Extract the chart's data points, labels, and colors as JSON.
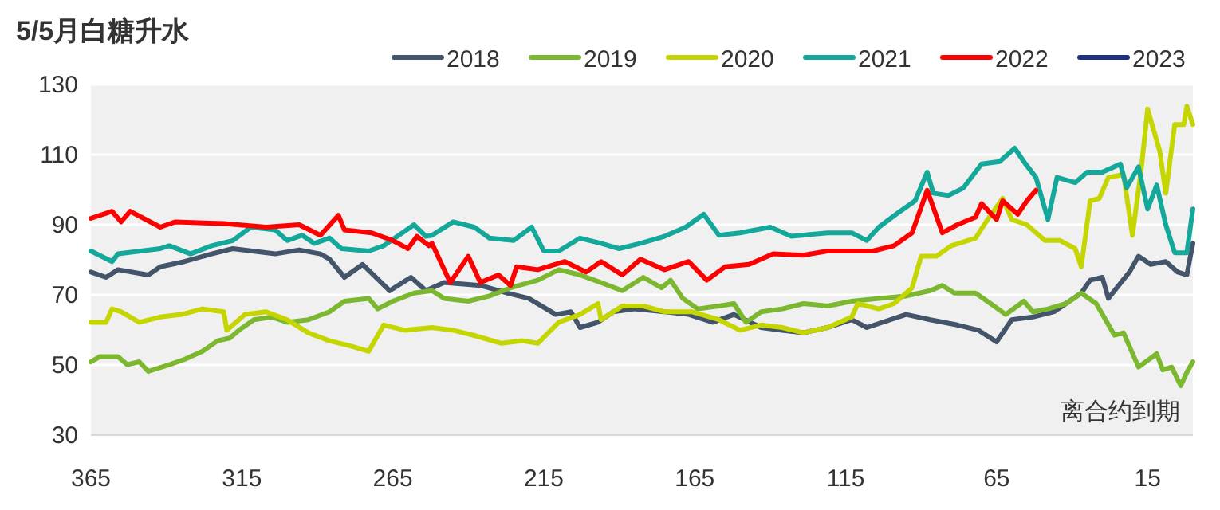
{
  "chart_data": {
    "type": "line",
    "title": "5/5月白糖升水",
    "annotations": [
      "离合约到期"
    ],
    "xlim": [
      365,
      0
    ],
    "xticks": [
      365,
      315,
      265,
      215,
      165,
      115,
      65,
      15
    ],
    "ylim": [
      30,
      130
    ],
    "yticks": [
      30,
      50,
      70,
      90,
      110,
      130
    ],
    "grid": "y",
    "legend": "top",
    "line_style": "solid",
    "marker": "none",
    "series": [
      {
        "name": "2018",
        "color": "#44546a",
        "x": [
          365,
          360,
          356,
          346,
          342,
          334,
          325,
          318,
          304,
          296,
          289,
          286,
          281,
          275,
          266,
          259,
          254,
          248,
          236,
          227,
          220,
          211,
          206,
          203,
          197,
          192,
          185,
          175,
          167,
          159,
          152,
          143,
          136,
          129,
          121,
          113,
          108,
          95,
          87,
          78,
          71,
          65,
          60,
          53,
          46,
          37,
          34,
          30,
          28,
          21,
          18,
          14,
          9,
          5,
          2,
          0
        ],
        "values": [
          76.5,
          75,
          77.2,
          75.7,
          78,
          79.5,
          81.7,
          83.2,
          81.7,
          82.8,
          81.7,
          80.2,
          75,
          78.7,
          71.2,
          75,
          71.2,
          73.5,
          72.7,
          70.5,
          69,
          64.4,
          65.2,
          60.7,
          62.2,
          65.2,
          66,
          65.2,
          64.4,
          62.2,
          64.4,
          60.7,
          59.9,
          59.2,
          60.7,
          62.9,
          60.7,
          64.4,
          62.9,
          61.4,
          59.9,
          56.6,
          62.9,
          63.7,
          65.2,
          70.5,
          74.2,
          75,
          69,
          76.5,
          81,
          78.7,
          79.5,
          76.5,
          75.7,
          84.7
        ]
      },
      {
        "name": "2019",
        "color": "#7cb82f",
        "x": [
          365,
          362,
          356,
          353,
          349,
          346,
          339,
          334,
          328,
          323,
          319,
          316,
          311,
          305,
          300,
          293,
          286,
          281,
          273,
          270,
          265,
          258,
          252,
          248,
          240,
          233,
          226,
          217,
          210,
          203,
          196,
          189,
          182,
          176,
          173,
          169,
          164,
          157,
          152,
          148,
          143,
          136,
          129,
          121,
          113,
          104,
          95,
          87,
          83,
          79,
          72,
          67,
          62,
          56,
          53,
          48,
          42,
          37,
          32,
          26,
          23,
          18,
          12,
          10,
          7,
          4,
          2,
          0
        ],
        "values": [
          50.9,
          52.4,
          52.4,
          50.1,
          50.9,
          48.2,
          50.1,
          51.6,
          53.9,
          56.9,
          57.7,
          59.9,
          62.9,
          63.7,
          62.2,
          62.9,
          65.2,
          68.2,
          69,
          66,
          68.2,
          70.5,
          71.2,
          69,
          68.2,
          69.7,
          72,
          74.2,
          77.2,
          75.7,
          73.5,
          71.2,
          75,
          72,
          74.2,
          69,
          66,
          66.8,
          67.5,
          62.2,
          65.2,
          66,
          67.5,
          66.8,
          68.2,
          69,
          69.7,
          71.2,
          72.7,
          70.5,
          70.5,
          67.5,
          64.4,
          68.2,
          65.2,
          66,
          67.5,
          70.5,
          67.5,
          58.5,
          59.2,
          49.4,
          53.2,
          48.6,
          49.4,
          44.1,
          47.9,
          50.9
        ]
      },
      {
        "name": "2020",
        "color": "#c5d500",
        "x": [
          365,
          360,
          358,
          355,
          349,
          342,
          335,
          328,
          321,
          320,
          314,
          307,
          300,
          293,
          286,
          279,
          273,
          268,
          261,
          252,
          245,
          238,
          229,
          222,
          217,
          210,
          203,
          197,
          196,
          189,
          182,
          175,
          166,
          157,
          150,
          143,
          136,
          129,
          121,
          113,
          111,
          104,
          99,
          93,
          90,
          85,
          80,
          72,
          68,
          63,
          60,
          55,
          49,
          44,
          39,
          37,
          34,
          31,
          28,
          23,
          20,
          17,
          15,
          11,
          9,
          6,
          3,
          2,
          0
        ],
        "values": [
          62.2,
          62.2,
          66,
          65.2,
          62.2,
          63.7,
          64.4,
          66,
          65.2,
          59.9,
          64.4,
          65.2,
          62.9,
          59.2,
          56.9,
          55.4,
          53.9,
          61.4,
          59.9,
          60.7,
          59.9,
          58.4,
          56.2,
          56.9,
          56.2,
          62.2,
          64.4,
          67.5,
          62.9,
          66.8,
          66.8,
          65.2,
          65.2,
          62.9,
          59.9,
          61.4,
          60.7,
          59.2,
          60.7,
          63.7,
          67.5,
          66,
          67.5,
          72,
          81,
          81,
          84,
          86.2,
          91.5,
          97.5,
          91.5,
          90,
          85.5,
          85.5,
          83.2,
          78,
          96.8,
          97.5,
          103.5,
          104.3,
          87,
          106.5,
          123,
          111,
          99,
          118.6,
          118.6,
          123.8,
          118.6
        ]
      },
      {
        "name": "2021",
        "color": "#14a89b",
        "x": [
          365,
          358,
          356,
          342,
          339,
          332,
          325,
          318,
          312,
          304,
          300,
          295,
          291,
          286,
          282,
          273,
          268,
          263,
          258,
          254,
          252,
          245,
          238,
          233,
          225,
          219,
          215,
          210,
          203,
          196,
          190,
          183,
          175,
          168,
          162,
          157,
          150,
          140,
          133,
          121,
          113,
          108,
          104,
          97,
          92,
          88,
          86,
          81,
          76,
          70,
          64,
          59,
          56,
          52,
          48,
          45,
          39,
          35,
          30,
          24,
          22,
          18,
          15,
          12,
          9,
          6,
          2,
          0
        ],
        "values": [
          82.5,
          79.5,
          81.7,
          83.2,
          84,
          81.7,
          84,
          85.5,
          89.3,
          88.5,
          85.5,
          87,
          84.7,
          86.2,
          83.2,
          82.5,
          84,
          87,
          90,
          86.7,
          87,
          90.8,
          89.3,
          86.2,
          85.5,
          89.3,
          82.5,
          82.5,
          86.2,
          84.7,
          83.2,
          84.7,
          86.7,
          89.3,
          93,
          87,
          87.7,
          89.3,
          86.7,
          87.7,
          87.7,
          85.5,
          89.3,
          93.8,
          96.8,
          105,
          99,
          98.3,
          100.5,
          107.3,
          108,
          111.8,
          108,
          103.5,
          91.5,
          103.5,
          102,
          105,
          105,
          107.3,
          100.5,
          106.5,
          94.5,
          101.3,
          90,
          82,
          82,
          94.5
        ]
      },
      {
        "name": "2022",
        "color": "#ff0000",
        "x": [
          365,
          358,
          355,
          352,
          342,
          337,
          321,
          307,
          296,
          289,
          283,
          281,
          272,
          265,
          260,
          257,
          253,
          252,
          246,
          240,
          236,
          230,
          226,
          224,
          217,
          208,
          201,
          196,
          189,
          183,
          175,
          167,
          161,
          155,
          147,
          139,
          129,
          121,
          113,
          106,
          99,
          93,
          88,
          83,
          78,
          72,
          70,
          65,
          63,
          58,
          55,
          52
        ],
        "values": [
          91.8,
          93.8,
          90.8,
          93.8,
          89.3,
          90.8,
          90.3,
          89.3,
          90,
          87,
          92.7,
          88.5,
          87.7,
          85.5,
          83.2,
          86.7,
          84,
          84.7,
          73.5,
          81,
          73.5,
          75.7,
          72.7,
          78,
          77.2,
          79.5,
          76.5,
          79.5,
          75.7,
          80.2,
          77.2,
          79.5,
          74.2,
          78,
          78.7,
          81.7,
          81.3,
          82.5,
          82.5,
          82.5,
          84,
          87.7,
          99.8,
          87.7,
          90,
          92.2,
          96,
          91.5,
          96.8,
          93,
          96.8,
          99.8
        ]
      },
      {
        "name": "2023",
        "color": "#203080"
      }
    ]
  }
}
